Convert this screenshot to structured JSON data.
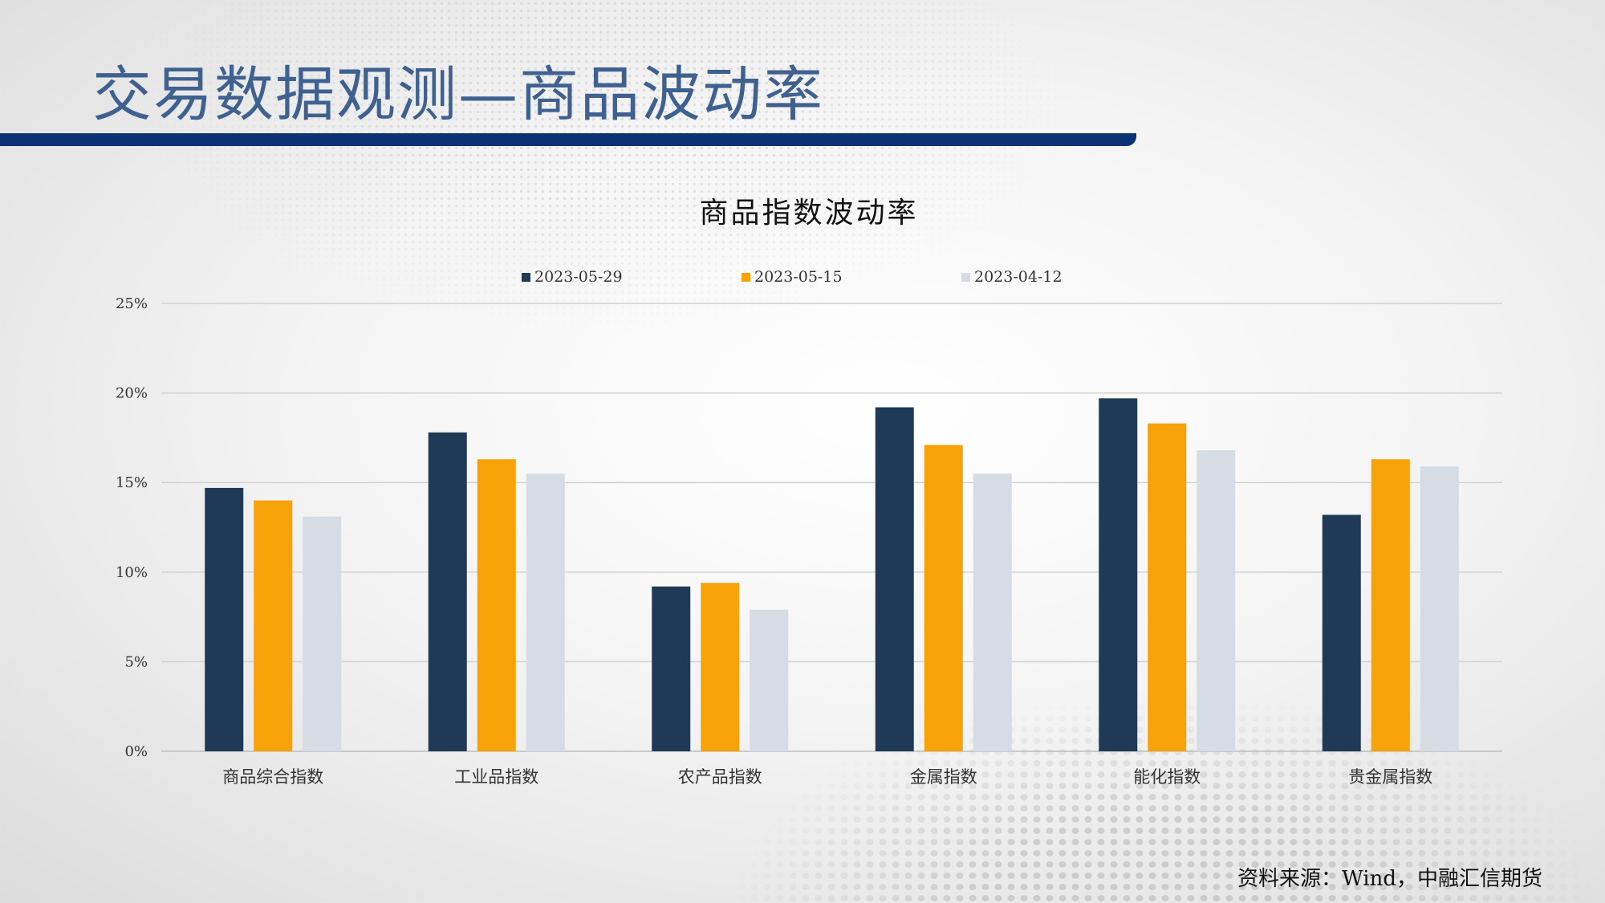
{
  "header": {
    "title": "交易数据观测—商品波动率"
  },
  "source": "资料来源：Wind，中融汇信期货",
  "colors": {
    "series": [
      "#1f3a56",
      "#f8a20a",
      "#d6dce4"
    ],
    "bar": "#0b3272",
    "title": "#3f6190"
  },
  "chart_data": {
    "type": "bar",
    "title": "商品指数波动率",
    "categories": [
      "商品综合指数",
      "工业品指数",
      "农产品指数",
      "金属指数",
      "能化指数",
      "贵金属指数"
    ],
    "series": [
      {
        "name": "2023-05-29",
        "values": [
          14.7,
          17.8,
          9.2,
          19.2,
          19.7,
          13.2
        ]
      },
      {
        "name": "2023-05-15",
        "values": [
          14.0,
          16.3,
          9.4,
          17.1,
          18.3,
          16.3
        ]
      },
      {
        "name": "2023-04-12",
        "values": [
          13.1,
          15.5,
          7.9,
          15.5,
          16.8,
          15.9
        ]
      }
    ],
    "yticks": [
      "0%",
      "5%",
      "10%",
      "15%",
      "20%",
      "25%"
    ],
    "ylim": [
      0,
      25
    ],
    "xlabel": "",
    "ylabel": "",
    "grid": true,
    "legend": "top"
  }
}
